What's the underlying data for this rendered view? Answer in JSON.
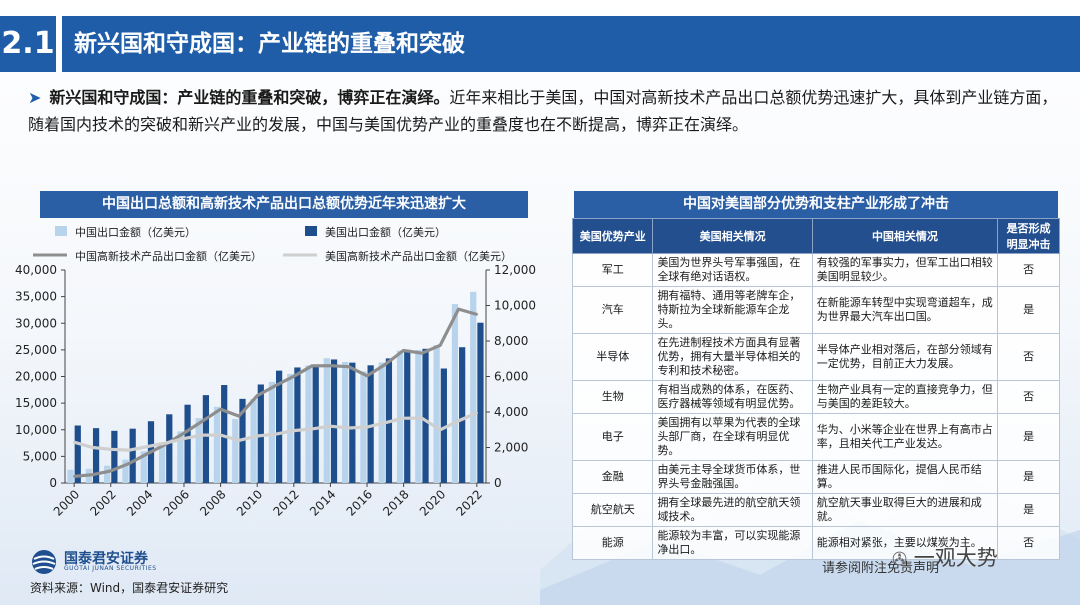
{
  "header": {
    "badge": "2.1",
    "title": "新兴国和守成国：产业链的重叠和突破"
  },
  "intro": {
    "bold": "新兴国和守成国：产业链的重叠和突破，博弈正在演绎。",
    "text": "近年来相比于美国，中国对高新技术产品出口总额优势迅速扩大，具体到产业链方面，随着国内技术的突破和新兴产业的发展，中国与美国优势产业的重叠度也在不断提高，博弈正在演绎。"
  },
  "chart_title": "中国出口总额和高新技术产品出口总额优势近年来迅速扩大",
  "chart_data": {
    "type": "bar",
    "x": [
      2000,
      2001,
      2002,
      2003,
      2004,
      2005,
      2006,
      2007,
      2008,
      2009,
      2010,
      2011,
      2012,
      2013,
      2014,
      2015,
      2016,
      2017,
      2018,
      2019,
      2020,
      2021,
      2022
    ],
    "x_tick_labels": [
      "2000",
      "2002",
      "2004",
      "2006",
      "2008",
      "2010",
      "2012",
      "2014",
      "2016",
      "2018",
      "2020",
      "2022"
    ],
    "y_left_ticks": [
      "0",
      "5,000",
      "10,000",
      "15,000",
      "20,000",
      "25,000",
      "30,000",
      "35,000",
      "40,000"
    ],
    "y_right_ticks": [
      "0",
      "2,000",
      "4,000",
      "6,000",
      "8,000",
      "10,000",
      "12,000"
    ],
    "ylim_left": [
      0,
      40000
    ],
    "ylim_right": [
      0,
      12000
    ],
    "series": [
      {
        "name": "中国出口金额（亿美元）",
        "type": "bar",
        "axis": "left",
        "color": "#b8d3ec",
        "values": [
          2492,
          2661,
          3256,
          4382,
          5934,
          7620,
          9690,
          12200,
          14307,
          12016,
          15778,
          18984,
          20487,
          22090,
          23423,
          22735,
          20976,
          22633,
          24867,
          24990,
          25900,
          33600,
          35900
        ]
      },
      {
        "name": "美国出口金额（亿美元）",
        "type": "bar",
        "axis": "left",
        "color": "#1f4e8c",
        "values": [
          10800,
          10300,
          9800,
          10200,
          11600,
          12900,
          14700,
          16500,
          18400,
          15800,
          18500,
          21100,
          21700,
          22200,
          23200,
          22600,
          22100,
          23400,
          25000,
          25200,
          21500,
          25500,
          30100
        ]
      },
      {
        "name": "中国高新技术产品出口金额（亿美元）",
        "type": "line",
        "axis": "right",
        "color": "#8e8e8e",
        "values": [
          370,
          465,
          680,
          1100,
          1650,
          2180,
          2810,
          3480,
          4160,
          3770,
          4920,
          5490,
          6010,
          6600,
          6610,
          6550,
          6040,
          6680,
          7470,
          7310,
          7760,
          9800,
          9500
        ]
      },
      {
        "name": "美国高新技术产品出口金额（亿美元）",
        "type": "line",
        "axis": "right",
        "color": "#cfcfcf",
        "values": [
          2300,
          2000,
          1900,
          1850,
          2050,
          2250,
          2500,
          2700,
          2700,
          2400,
          2650,
          2750,
          2950,
          3050,
          3200,
          3100,
          3150,
          3400,
          3650,
          3650,
          3000,
          3500,
          3950
        ]
      }
    ]
  },
  "table": {
    "title": "中国对美国部分优势和支柱产业形成了冲击",
    "headers": [
      "美国优势产业",
      "美国相关情况",
      "中国相关情况",
      "是否形成明显冲击"
    ],
    "rows": [
      [
        "军工",
        "美国为世界头号军事强国，在全球有绝对话语权。",
        "有较强的军事实力，但军工出口相较美国明显较少。",
        "否"
      ],
      [
        "汽车",
        "拥有福特、通用等老牌车企，特斯拉为全球新能源车企龙头。",
        "在新能源车转型中实现弯道超车，成为世界最大汽车出口国。",
        "是"
      ],
      [
        "半导体",
        "在先进制程技术方面具有显著优势，拥有大量半导体相关的专利和技术秘密。",
        "半导体产业相对落后，在部分领域有一定优势，目前正大力发展。",
        "否"
      ],
      [
        "生物",
        "有相当成熟的体系，在医药、医疗器械等领域有明显优势。",
        "生物产业具有一定的直接竞争力，但与美国的差距较大。",
        "否"
      ],
      [
        "电子",
        "美国拥有以苹果为代表的全球头部厂商，在全球有明显优势。",
        "华为、小米等企业在世界上有高市占率，且相关代工产业发达。",
        "是"
      ],
      [
        "金融",
        "由美元主导全球货币体系，世界头号金融强国。",
        "推进人民币国际化，提倡人民币结算。",
        "是"
      ],
      [
        "航空航天",
        "拥有全球最先进的航空航天领域技术。",
        "航空航天事业取得巨大的进展和成就。",
        "是"
      ],
      [
        "能源",
        "能源较为丰富，可以实现能源净出口。",
        "能源相对紧张，主要以煤炭为主。",
        "否"
      ]
    ]
  },
  "footer": {
    "logo_cn": "国泰君安证券",
    "logo_en": "GUOTAI JUNAN SECURITIES",
    "source": "资料来源：Wind，国泰君安证券研究",
    "note": "请参阅附注免责声明",
    "wechat": "一观大势"
  }
}
